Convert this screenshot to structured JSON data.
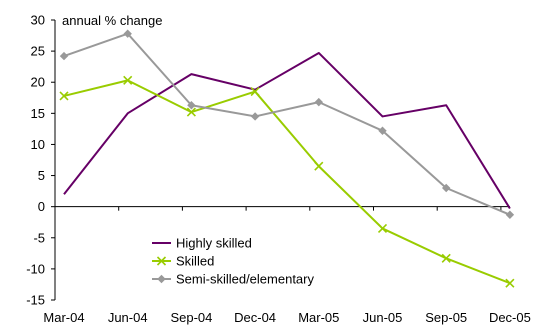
{
  "chart_data": {
    "type": "line",
    "title": "",
    "xlabel": "",
    "ylabel": "annual % change",
    "categories": [
      "Mar-04",
      "Jun-04",
      "Sep-04",
      "Dec-04",
      "Mar-05",
      "Jun-05",
      "Sep-05",
      "Dec-05"
    ],
    "ylim": [
      -15,
      30
    ],
    "yticks": [
      -15,
      -10,
      -5,
      0,
      5,
      10,
      15,
      20,
      25,
      30
    ],
    "grid": false,
    "legend_position": "bottom-center",
    "series": [
      {
        "name": "Highly skilled",
        "color": "#660066",
        "marker": "none",
        "values": [
          2,
          15,
          21.3,
          18.8,
          24.7,
          14.5,
          16.3,
          -0.3
        ]
      },
      {
        "name": "Skilled",
        "color": "#99cc00",
        "marker": "x",
        "values": [
          17.8,
          20.3,
          15.2,
          18.5,
          6.5,
          -3.5,
          -8.3,
          -12.3
        ]
      },
      {
        "name": "Semi-skilled/elementary",
        "color": "#999999",
        "marker": "diamond",
        "values": [
          24.2,
          27.8,
          16.3,
          14.5,
          16.8,
          12.2,
          3,
          -1.3
        ]
      }
    ]
  }
}
